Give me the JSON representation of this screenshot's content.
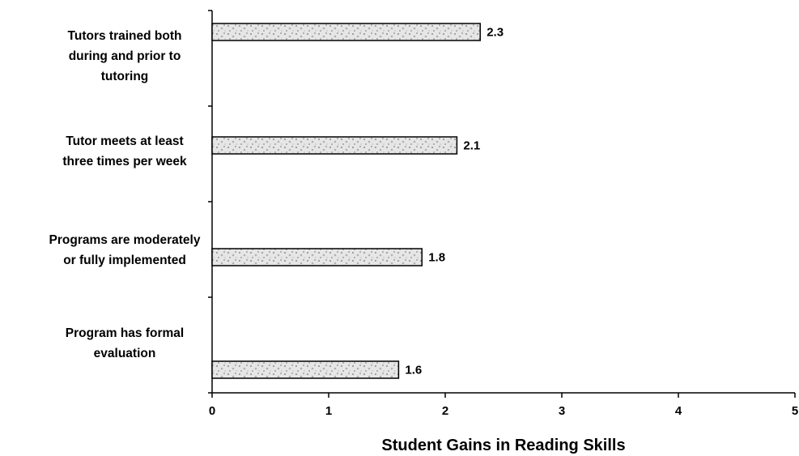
{
  "chart_data": {
    "type": "bar",
    "orientation": "horizontal",
    "categories": [
      [
        "Tutors trained both",
        "during and prior to",
        "tutoring"
      ],
      [
        "Tutor meets at least",
        "three times per week"
      ],
      [
        "Programs are moderately",
        "or fully implemented"
      ],
      [
        "Program has formal",
        "evaluation"
      ]
    ],
    "values": [
      2.3,
      2.1,
      1.8,
      1.6
    ],
    "value_labels": [
      "2.3",
      "2.1",
      "1.8",
      "1.6"
    ],
    "xlabel": "Student Gains in Reading Skills",
    "ylabel": "",
    "title": "",
    "xlim": [
      0,
      5
    ],
    "xticks": [
      "0",
      "1",
      "2",
      "3",
      "4",
      "5"
    ],
    "grid": false,
    "legend": "none",
    "colors": {
      "bar_fill": "#dcdcdc",
      "bar_speckle": "#a8a8a8",
      "axis": "#000000"
    }
  }
}
